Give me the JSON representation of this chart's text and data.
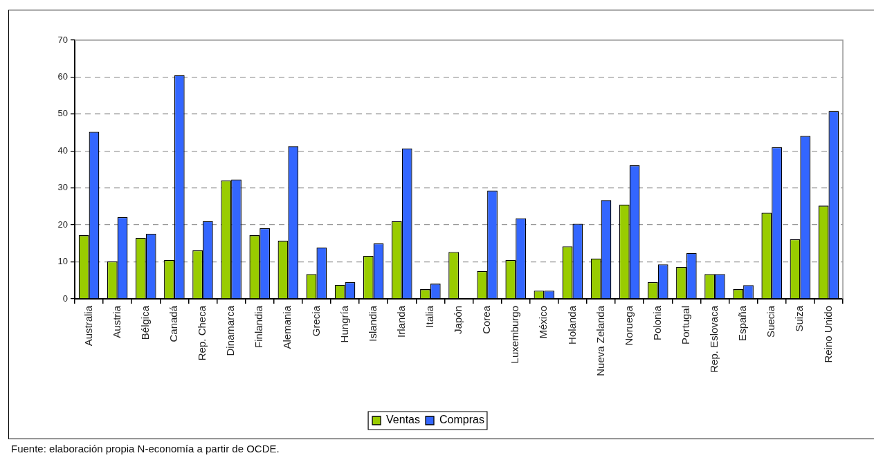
{
  "chart_data": {
    "type": "bar",
    "categories": [
      "Australia",
      "Austria",
      "Bélgica",
      "Canadá",
      "Rep. Checa",
      "Dinamarca",
      "Finlandia",
      "Alemania",
      "Grecia",
      "Hungría",
      "Islandia",
      "Irlanda",
      "Italia",
      "Japón",
      "Corea",
      "Luxemburgo",
      "México",
      "Holanda",
      "Nueva Zelanda",
      "Noruega",
      "Polonia",
      "Portugal",
      "Rep. Eslovaca",
      "España",
      "Suecia",
      "Suiza",
      "Reino Unido"
    ],
    "series": [
      {
        "name": "Ventas",
        "color": "#99cc00",
        "values": [
          17.2,
          10.1,
          16.5,
          10.5,
          13.1,
          32.0,
          17.2,
          15.7,
          6.7,
          3.8,
          11.6,
          21.0,
          2.6,
          12.7,
          7.5,
          10.5,
          2.2,
          14.2,
          10.9,
          25.5,
          4.5,
          8.6,
          6.7,
          2.6,
          23.3,
          16.1,
          25.2
        ]
      },
      {
        "name": "Compras",
        "color": "#3366ff",
        "values": [
          45.2,
          22.1,
          17.6,
          60.5,
          21.0,
          32.3,
          19.1,
          41.3,
          13.9,
          4.5,
          15.0,
          40.7,
          4.1,
          null,
          29.3,
          21.8,
          2.2,
          20.3,
          26.7,
          36.1,
          9.3,
          12.4,
          6.7,
          3.7,
          41.0,
          44.1,
          50.8
        ]
      }
    ],
    "ylim": [
      0,
      70
    ],
    "yticks": [
      0,
      10,
      20,
      30,
      40,
      50,
      60,
      70
    ],
    "grid": "y",
    "legend": "bottom",
    "annotations": [
      "Fuente: elaboración propia N-economía a partir de OCDE."
    ]
  }
}
